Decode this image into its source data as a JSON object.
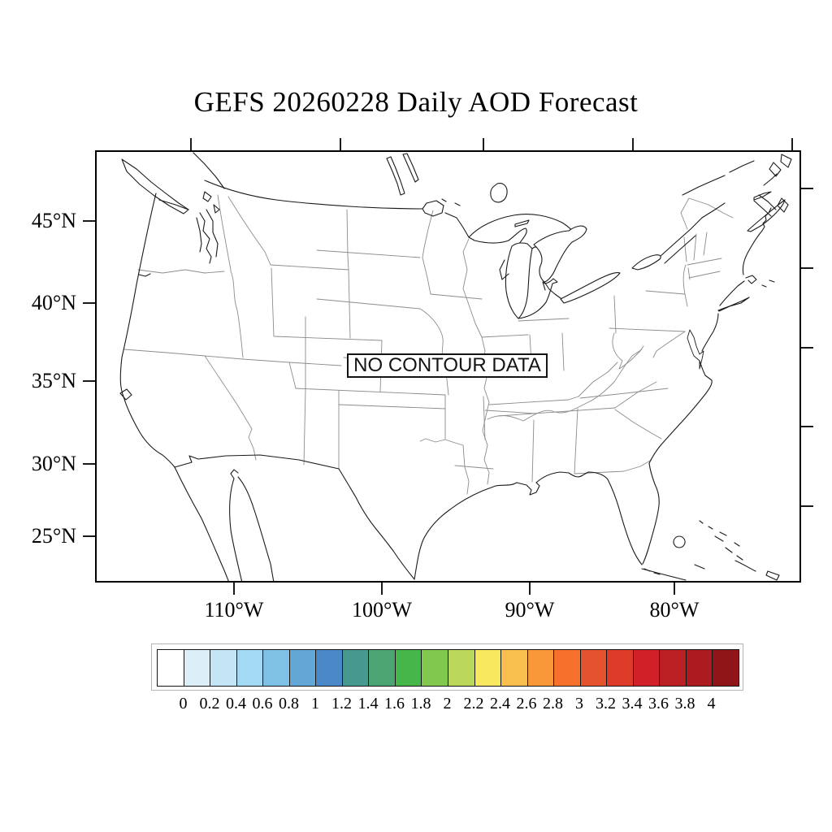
{
  "title": "GEFS 20260228 Daily AOD Forecast",
  "map": {
    "no_data_label": "NO CONTOUR DATA"
  },
  "axes": {
    "lat_labels": [
      {
        "text": "45°N"
      },
      {
        "text": "40°N"
      },
      {
        "text": "35°N"
      },
      {
        "text": "30°N"
      },
      {
        "text": "25°N"
      }
    ],
    "lon_labels": [
      {
        "text": "110°W"
      },
      {
        "text": "100°W"
      },
      {
        "text": "90°W"
      },
      {
        "text": "80°W"
      }
    ]
  },
  "colorbar": {
    "levels": [
      "0",
      "0.2",
      "0.4",
      "0.6",
      "0.8",
      "1",
      "1.2",
      "1.4",
      "1.6",
      "1.8",
      "2",
      "2.2",
      "2.4",
      "2.6",
      "2.8",
      "3",
      "3.2",
      "3.4",
      "3.6",
      "3.8",
      "4"
    ],
    "colors": [
      "#FFFFFF",
      "#DCEEF8",
      "#C3E5F5",
      "#A3D9F2",
      "#7FC1E4",
      "#62A7D6",
      "#4A88C8",
      "#47998F",
      "#4BA472",
      "#45B649",
      "#81C94E",
      "#BBD85A",
      "#F8E860",
      "#F8BF4F",
      "#F89838",
      "#F5712C",
      "#E5522E",
      "#DE3A2A",
      "#D02128",
      "#BA1F24",
      "#AC1B20",
      "#8F1519"
    ]
  }
}
